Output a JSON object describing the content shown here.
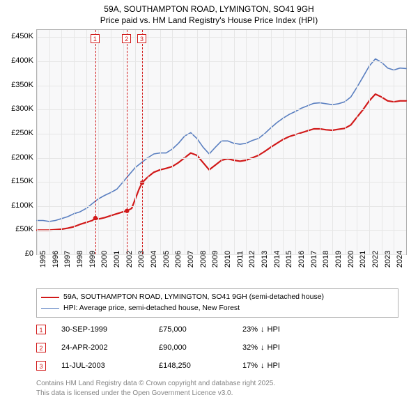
{
  "title_line1": "59A, SOUTHAMPTON ROAD, LYMINGTON, SO41 9GH",
  "title_line2": "Price paid vs. HM Land Registry's House Price Index (HPI)",
  "chart": {
    "type": "line",
    "background_color": "#f8f8f9",
    "grid_color": "#e6e6e6",
    "border_color": "#b0b0b0",
    "x_years": [
      1995,
      1996,
      1997,
      1998,
      1999,
      2000,
      2001,
      2002,
      2003,
      2004,
      2005,
      2006,
      2007,
      2008,
      2009,
      2010,
      2011,
      2012,
      2013,
      2014,
      2015,
      2016,
      2017,
      2018,
      2019,
      2020,
      2021,
      2022,
      2023,
      2024
    ],
    "xlim": [
      1995,
      2025
    ],
    "ylim": [
      0,
      465000
    ],
    "y_ticks": [
      0,
      50000,
      100000,
      150000,
      200000,
      250000,
      300000,
      350000,
      400000,
      450000
    ],
    "y_tick_labels": [
      "£0",
      "£50K",
      "£100K",
      "£150K",
      "£200K",
      "£250K",
      "£300K",
      "£350K",
      "£400K",
      "£450K"
    ],
    "series_red": {
      "color": "#d11919",
      "width": 2.2,
      "points": [
        [
          1995,
          50000
        ],
        [
          1995.5,
          50000
        ],
        [
          1996,
          50000
        ],
        [
          1996.5,
          51000
        ],
        [
          1997,
          52000
        ],
        [
          1997.5,
          54000
        ],
        [
          1998,
          57000
        ],
        [
          1998.5,
          62000
        ],
        [
          1999,
          66000
        ],
        [
          1999.5,
          70000
        ],
        [
          1999.75,
          75000
        ],
        [
          2000,
          73000
        ],
        [
          2000.5,
          76000
        ],
        [
          2001,
          80000
        ],
        [
          2001.5,
          84000
        ],
        [
          2002,
          88000
        ],
        [
          2002.3,
          90000
        ],
        [
          2002.7,
          95000
        ],
        [
          2003,
          115000
        ],
        [
          2003.3,
          135000
        ],
        [
          2003.55,
          148250
        ],
        [
          2004,
          160000
        ],
        [
          2004.5,
          170000
        ],
        [
          2005,
          175000
        ],
        [
          2005.5,
          178000
        ],
        [
          2006,
          182000
        ],
        [
          2006.5,
          190000
        ],
        [
          2007,
          200000
        ],
        [
          2007.5,
          210000
        ],
        [
          2008,
          205000
        ],
        [
          2008.5,
          190000
        ],
        [
          2009,
          175000
        ],
        [
          2009.5,
          185000
        ],
        [
          2010,
          195000
        ],
        [
          2010.5,
          198000
        ],
        [
          2011,
          195000
        ],
        [
          2011.5,
          193000
        ],
        [
          2012,
          195000
        ],
        [
          2012.5,
          200000
        ],
        [
          2013,
          205000
        ],
        [
          2013.5,
          213000
        ],
        [
          2014,
          222000
        ],
        [
          2014.5,
          230000
        ],
        [
          2015,
          238000
        ],
        [
          2015.5,
          244000
        ],
        [
          2016,
          248000
        ],
        [
          2016.5,
          252000
        ],
        [
          2017,
          256000
        ],
        [
          2017.5,
          260000
        ],
        [
          2018,
          260000
        ],
        [
          2018.5,
          258000
        ],
        [
          2019,
          257000
        ],
        [
          2019.5,
          259000
        ],
        [
          2020,
          261000
        ],
        [
          2020.5,
          268000
        ],
        [
          2021,
          284000
        ],
        [
          2021.5,
          300000
        ],
        [
          2022,
          318000
        ],
        [
          2022.5,
          332000
        ],
        [
          2023,
          326000
        ],
        [
          2023.5,
          318000
        ],
        [
          2024,
          316000
        ],
        [
          2024.5,
          318000
        ],
        [
          2025,
          318000
        ]
      ]
    },
    "series_blue": {
      "color": "#5a7fc0",
      "width": 1.6,
      "points": [
        [
          1995,
          70000
        ],
        [
          1995.5,
          70000
        ],
        [
          1996,
          68000
        ],
        [
          1996.5,
          70000
        ],
        [
          1997,
          74000
        ],
        [
          1997.5,
          78000
        ],
        [
          1998,
          84000
        ],
        [
          1998.5,
          88000
        ],
        [
          1999,
          95000
        ],
        [
          1999.5,
          105000
        ],
        [
          2000,
          115000
        ],
        [
          2000.5,
          122000
        ],
        [
          2001,
          128000
        ],
        [
          2001.5,
          135000
        ],
        [
          2002,
          150000
        ],
        [
          2002.5,
          165000
        ],
        [
          2003,
          180000
        ],
        [
          2003.5,
          190000
        ],
        [
          2004,
          200000
        ],
        [
          2004.5,
          208000
        ],
        [
          2005,
          210000
        ],
        [
          2005.5,
          210000
        ],
        [
          2006,
          218000
        ],
        [
          2006.5,
          230000
        ],
        [
          2007,
          245000
        ],
        [
          2007.5,
          252000
        ],
        [
          2008,
          240000
        ],
        [
          2008.5,
          222000
        ],
        [
          2009,
          208000
        ],
        [
          2009.5,
          222000
        ],
        [
          2010,
          235000
        ],
        [
          2010.5,
          235000
        ],
        [
          2011,
          230000
        ],
        [
          2011.5,
          228000
        ],
        [
          2012,
          230000
        ],
        [
          2012.5,
          236000
        ],
        [
          2013,
          240000
        ],
        [
          2013.5,
          250000
        ],
        [
          2014,
          262000
        ],
        [
          2014.5,
          273000
        ],
        [
          2015,
          282000
        ],
        [
          2015.5,
          290000
        ],
        [
          2016,
          296000
        ],
        [
          2016.5,
          303000
        ],
        [
          2017,
          308000
        ],
        [
          2017.5,
          313000
        ],
        [
          2018,
          314000
        ],
        [
          2018.5,
          312000
        ],
        [
          2019,
          310000
        ],
        [
          2019.5,
          312000
        ],
        [
          2020,
          316000
        ],
        [
          2020.5,
          326000
        ],
        [
          2021,
          346000
        ],
        [
          2021.5,
          368000
        ],
        [
          2022,
          390000
        ],
        [
          2022.5,
          405000
        ],
        [
          2023,
          398000
        ],
        [
          2023.5,
          386000
        ],
        [
          2024,
          382000
        ],
        [
          2024.5,
          386000
        ],
        [
          2025,
          385000
        ]
      ]
    },
    "sale_markers": [
      {
        "n": "1",
        "year": 1999.75,
        "color": "#d11919"
      },
      {
        "n": "2",
        "year": 2002.32,
        "color": "#d11919"
      },
      {
        "n": "3",
        "year": 2003.55,
        "color": "#d11919"
      }
    ]
  },
  "legend": {
    "line1_color": "#d11919",
    "line1_text": "59A, SOUTHAMPTON ROAD, LYMINGTON, SO41 9GH (semi-detached house)",
    "line2_color": "#5a7fc0",
    "line2_text": "HPI: Average price, semi-detached house, New Forest"
  },
  "sales": [
    {
      "n": "1",
      "date": "30-SEP-1999",
      "price": "£75,000",
      "delta": "23%",
      "dir": "down",
      "vs": "HPI"
    },
    {
      "n": "2",
      "date": "24-APR-2002",
      "price": "£90,000",
      "delta": "32%",
      "dir": "down",
      "vs": "HPI"
    },
    {
      "n": "3",
      "date": "11-JUL-2003",
      "price": "£148,250",
      "delta": "17%",
      "dir": "down",
      "vs": "HPI"
    }
  ],
  "sale_box_color": "#d11919",
  "footer1": "Contains HM Land Registry data © Crown copyright and database right 2025.",
  "footer2": "This data is licensed under the Open Government Licence v3.0."
}
